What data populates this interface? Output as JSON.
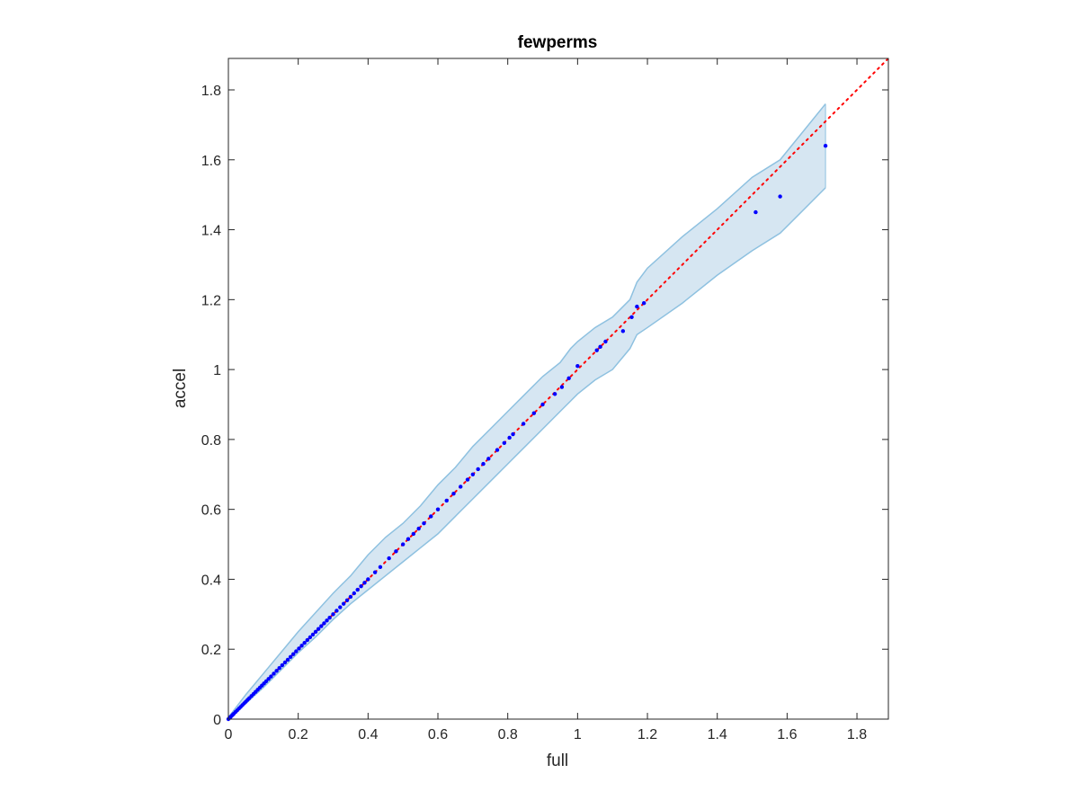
{
  "chart_data": {
    "type": "scatter",
    "title": "fewperms",
    "xlabel": "full",
    "ylabel": "accel",
    "xlim": [
      0,
      1.89
    ],
    "ylim": [
      0,
      1.89
    ],
    "xticks": [
      0,
      0.2,
      0.4,
      0.6,
      0.8,
      1,
      1.2,
      1.4,
      1.6,
      1.8
    ],
    "yticks": [
      0,
      0.2,
      0.4,
      0.6,
      0.8,
      1,
      1.2,
      1.4,
      1.6,
      1.8
    ],
    "xtick_labels": [
      "0",
      "0.2",
      "0.4",
      "0.6",
      "0.8",
      "1",
      "1.2",
      "1.4",
      "1.6",
      "1.8"
    ],
    "ytick_labels": [
      "0",
      "0.2",
      "0.4",
      "0.6",
      "0.8",
      "1",
      "1.2",
      "1.4",
      "1.6",
      "1.8"
    ],
    "grid": false,
    "colors": {
      "points": "#0000ff",
      "reference_line": "#ff0000",
      "band_fill": "#d6e6f2",
      "band_edge": "#8ec1e0",
      "axes": "#262626"
    },
    "reference_line": {
      "style": "dotted",
      "x": [
        0,
        1.89
      ],
      "y": [
        0,
        1.89
      ]
    },
    "band": {
      "x": [
        0,
        0.05,
        0.1,
        0.15,
        0.2,
        0.25,
        0.3,
        0.35,
        0.4,
        0.45,
        0.5,
        0.55,
        0.6,
        0.65,
        0.7,
        0.75,
        0.8,
        0.85,
        0.9,
        0.95,
        0.98,
        1.0,
        1.05,
        1.1,
        1.15,
        1.17,
        1.2,
        1.3,
        1.4,
        1.5,
        1.58,
        1.71
      ],
      "upper": [
        0.005,
        0.07,
        0.13,
        0.19,
        0.25,
        0.305,
        0.36,
        0.41,
        0.47,
        0.52,
        0.56,
        0.61,
        0.67,
        0.72,
        0.78,
        0.83,
        0.88,
        0.93,
        0.98,
        1.02,
        1.06,
        1.08,
        1.12,
        1.15,
        1.2,
        1.25,
        1.29,
        1.38,
        1.46,
        1.55,
        1.6,
        1.76
      ],
      "lower": [
        0.0,
        0.045,
        0.09,
        0.14,
        0.19,
        0.235,
        0.285,
        0.33,
        0.37,
        0.41,
        0.45,
        0.49,
        0.53,
        0.58,
        0.63,
        0.68,
        0.73,
        0.78,
        0.83,
        0.88,
        0.91,
        0.93,
        0.97,
        1.0,
        1.06,
        1.1,
        1.12,
        1.19,
        1.27,
        1.34,
        1.39,
        1.52
      ]
    },
    "series": [
      {
        "x": [
          0,
          0.003,
          0.006,
          0.009,
          0.012,
          0.015,
          0.02,
          0.025,
          0.03,
          0.035,
          0.04,
          0.045,
          0.05,
          0.055,
          0.06,
          0.066,
          0.072,
          0.078,
          0.084,
          0.09,
          0.096,
          0.102,
          0.108,
          0.115,
          0.122,
          0.13,
          0.138,
          0.146,
          0.154,
          0.162,
          0.17,
          0.178,
          0.186,
          0.194,
          0.202,
          0.21,
          0.218,
          0.226,
          0.234,
          0.242,
          0.25,
          0.258,
          0.266,
          0.274,
          0.282,
          0.29,
          0.3,
          0.31,
          0.32,
          0.33,
          0.34,
          0.35,
          0.36,
          0.37,
          0.38,
          0.39,
          0.4,
          0.42,
          0.435,
          0.46,
          0.48,
          0.5,
          0.515,
          0.53,
          0.545,
          0.56,
          0.58,
          0.6,
          0.625,
          0.645,
          0.665,
          0.685,
          0.7,
          0.715,
          0.73,
          0.745,
          0.77,
          0.79,
          0.805,
          0.815,
          0.845,
          0.875,
          0.9,
          0.935,
          0.955,
          0.975,
          1.0,
          1.055,
          1.065,
          1.08,
          1.13,
          1.155,
          1.17,
          1.19,
          1.51,
          1.58,
          1.71
        ],
        "y": [
          0,
          0.003,
          0.006,
          0.009,
          0.012,
          0.015,
          0.02,
          0.025,
          0.03,
          0.035,
          0.04,
          0.045,
          0.05,
          0.055,
          0.06,
          0.066,
          0.072,
          0.078,
          0.084,
          0.09,
          0.096,
          0.102,
          0.108,
          0.115,
          0.122,
          0.13,
          0.138,
          0.146,
          0.154,
          0.162,
          0.17,
          0.178,
          0.186,
          0.194,
          0.202,
          0.21,
          0.218,
          0.226,
          0.234,
          0.242,
          0.25,
          0.258,
          0.266,
          0.274,
          0.282,
          0.29,
          0.3,
          0.31,
          0.32,
          0.33,
          0.34,
          0.35,
          0.36,
          0.37,
          0.38,
          0.39,
          0.4,
          0.42,
          0.435,
          0.46,
          0.48,
          0.5,
          0.515,
          0.53,
          0.545,
          0.56,
          0.58,
          0.6,
          0.625,
          0.645,
          0.665,
          0.685,
          0.7,
          0.715,
          0.73,
          0.745,
          0.77,
          0.79,
          0.805,
          0.815,
          0.845,
          0.875,
          0.9,
          0.93,
          0.95,
          0.975,
          1.01,
          1.055,
          1.065,
          1.08,
          1.11,
          1.15,
          1.18,
          1.19,
          1.45,
          1.495,
          1.64
        ]
      }
    ]
  }
}
